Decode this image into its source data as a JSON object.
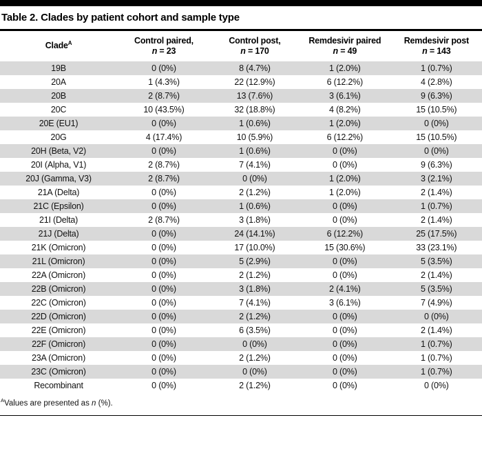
{
  "title": "Table 2. Clades by patient cohort and sample type",
  "colors": {
    "top_bar": "#000000",
    "rule": "#000000",
    "row_shade": "#d9d9d9",
    "text": "#111111"
  },
  "table": {
    "columns": [
      {
        "label": "Clade",
        "superscript": "A"
      },
      {
        "line1": "Control paired,",
        "n_label": "n",
        "n_value": "= 23"
      },
      {
        "line1": "Control post,",
        "n_label": "n",
        "n_value": "= 170"
      },
      {
        "line1": "Remdesivir paired",
        "n_label": "n",
        "n_value": "= 49"
      },
      {
        "line1": "Remdesivir post",
        "n_label": "n",
        "n_value": "= 143"
      }
    ],
    "rows": [
      [
        "19B",
        "0 (0%)",
        "8 (4.7%)",
        "1 (2.0%)",
        "1 (0.7%)"
      ],
      [
        "20A",
        "1 (4.3%)",
        "22 (12.9%)",
        "6 (12.2%)",
        "4 (2.8%)"
      ],
      [
        "20B",
        "2 (8.7%)",
        "13 (7.6%)",
        "3 (6.1%)",
        "9 (6.3%)"
      ],
      [
        "20C",
        "10 (43.5%)",
        "32 (18.8%)",
        "4 (8.2%)",
        "15 (10.5%)"
      ],
      [
        "20E (EU1)",
        "0 (0%)",
        "1 (0.6%)",
        "1 (2.0%)",
        "0 (0%)"
      ],
      [
        "20G",
        "4 (17.4%)",
        "10 (5.9%)",
        "6 (12.2%)",
        "15 (10.5%)"
      ],
      [
        "20H (Beta, V2)",
        "0 (0%)",
        "1 (0.6%)",
        "0 (0%)",
        "0 (0%)"
      ],
      [
        "20I (Alpha, V1)",
        "2 (8.7%)",
        "7 (4.1%)",
        "0 (0%)",
        "9 (6.3%)"
      ],
      [
        "20J (Gamma, V3)",
        "2 (8.7%)",
        "0 (0%)",
        "1 (2.0%)",
        "3 (2.1%)"
      ],
      [
        "21A (Delta)",
        "0 (0%)",
        "2 (1.2%)",
        "1 (2.0%)",
        "2 (1.4%)"
      ],
      [
        "21C (Epsilon)",
        "0 (0%)",
        "1 (0.6%)",
        "0 (0%)",
        "1 (0.7%)"
      ],
      [
        "21I (Delta)",
        "2 (8.7%)",
        "3 (1.8%)",
        "0 (0%)",
        "2 (1.4%)"
      ],
      [
        "21J (Delta)",
        "0 (0%)",
        "24 (14.1%)",
        "6 (12.2%)",
        "25 (17.5%)"
      ],
      [
        "21K (Omicron)",
        "0 (0%)",
        "17 (10.0%)",
        "15 (30.6%)",
        "33 (23.1%)"
      ],
      [
        "21L (Omicron)",
        "0 (0%)",
        "5 (2.9%)",
        "0 (0%)",
        "5 (3.5%)"
      ],
      [
        "22A (Omicron)",
        "0 (0%)",
        "2 (1.2%)",
        "0 (0%)",
        "2 (1.4%)"
      ],
      [
        "22B (Omicron)",
        "0 (0%)",
        "3 (1.8%)",
        "2 (4.1%)",
        "5 (3.5%)"
      ],
      [
        "22C (Omicron)",
        "0 (0%)",
        "7 (4.1%)",
        "3 (6.1%)",
        "7 (4.9%)"
      ],
      [
        "22D (Omicron)",
        "0 (0%)",
        "2 (1.2%)",
        "0 (0%)",
        "0 (0%)"
      ],
      [
        "22E (Omicron)",
        "0 (0%)",
        "6 (3.5%)",
        "0 (0%)",
        "2 (1.4%)"
      ],
      [
        "22F (Omicron)",
        "0 (0%)",
        "0 (0%)",
        "0 (0%)",
        "1 (0.7%)"
      ],
      [
        "23A (Omicron)",
        "0 (0%)",
        "2 (1.2%)",
        "0 (0%)",
        "1 (0.7%)"
      ],
      [
        "23C (Omicron)",
        "0 (0%)",
        "0 (0%)",
        "0 (0%)",
        "1 (0.7%)"
      ],
      [
        "Recombinant",
        "0 (0%)",
        "2 (1.2%)",
        "0 (0%)",
        "0 (0%)"
      ]
    ]
  },
  "footnote": {
    "superscript": "A",
    "text_before": "Values are presented as ",
    "italic": "n",
    "text_after": " (%)."
  }
}
